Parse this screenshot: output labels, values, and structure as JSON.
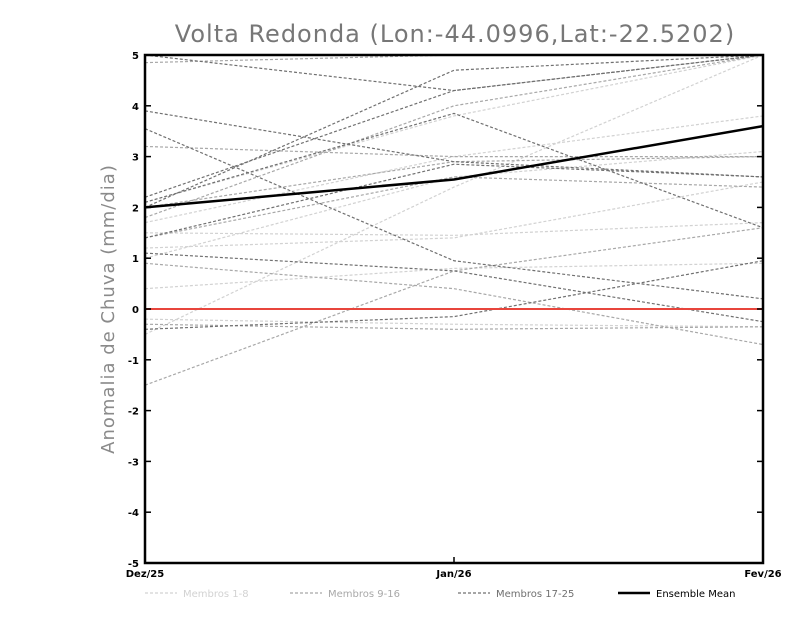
{
  "chart_data": {
    "type": "line",
    "title": "Volta Redonda (Lon:-44.0996,Lat:-22.5202)",
    "xlabel": "",
    "ylabel": "Anomalia de Chuva (mm/dia)",
    "categories": [
      "Dez/25",
      "Jan/26",
      "Fev/26"
    ],
    "ylim": [
      -5,
      5
    ],
    "yticks": [
      -5,
      -4,
      -3,
      -2,
      -1,
      0,
      1,
      2,
      3,
      4,
      5
    ],
    "reference_line": {
      "y": 0,
      "color": "#e8453c"
    },
    "legend_position": "bottom",
    "groups": [
      {
        "name": "Membros 1-8",
        "color": "#d2d2d2"
      },
      {
        "name": "Membros 9-16",
        "color": "#a8a8a8"
      },
      {
        "name": "Membros 17-25",
        "color": "#707070"
      }
    ],
    "series": [
      {
        "group": 0,
        "values": [
          1.2,
          1.4,
          2.5
        ]
      },
      {
        "group": 0,
        "values": [
          1.5,
          1.45,
          1.7
        ]
      },
      {
        "group": 0,
        "values": [
          0.4,
          0.8,
          0.9
        ]
      },
      {
        "group": 0,
        "values": [
          -0.5,
          2.4,
          5.0
        ]
      },
      {
        "group": 0,
        "values": [
          2.1,
          3.8,
          5.0
        ]
      },
      {
        "group": 0,
        "values": [
          1.0,
          2.6,
          3.1
        ]
      },
      {
        "group": 0,
        "values": [
          1.7,
          3.0,
          3.8
        ]
      },
      {
        "group": 0,
        "values": [
          -0.2,
          -0.3,
          -0.35
        ]
      },
      {
        "group": 1,
        "values": [
          4.85,
          5.0,
          5.0
        ]
      },
      {
        "group": 1,
        "values": [
          3.2,
          3.0,
          3.0
        ]
      },
      {
        "group": 1,
        "values": [
          1.4,
          2.6,
          2.4
        ]
      },
      {
        "group": 1,
        "values": [
          0.9,
          0.4,
          -0.7
        ]
      },
      {
        "group": 1,
        "values": [
          -1.5,
          0.75,
          1.6
        ]
      },
      {
        "group": 1,
        "values": [
          1.8,
          4.0,
          5.0
        ]
      },
      {
        "group": 1,
        "values": [
          2.0,
          2.9,
          3.0
        ]
      },
      {
        "group": 1,
        "values": [
          -0.3,
          -0.4,
          -0.35
        ]
      },
      {
        "group": 2,
        "values": [
          3.9,
          2.9,
          2.6
        ]
      },
      {
        "group": 2,
        "values": [
          3.55,
          0.95,
          0.2
        ]
      },
      {
        "group": 2,
        "values": [
          1.1,
          0.75,
          -0.25
        ]
      },
      {
        "group": 2,
        "values": [
          -0.4,
          -0.15,
          0.95
        ]
      },
      {
        "group": 2,
        "values": [
          2.2,
          4.3,
          5.0
        ]
      },
      {
        "group": 2,
        "values": [
          1.4,
          2.85,
          2.6
        ]
      },
      {
        "group": 2,
        "values": [
          5.0,
          4.3,
          5.0
        ]
      },
      {
        "group": 2,
        "values": [
          2.1,
          3.85,
          1.6
        ]
      },
      {
        "group": 2,
        "values": [
          2.0,
          4.7,
          5.0
        ]
      }
    ],
    "mean": {
      "name": "Ensemble Mean",
      "color": "#000000",
      "values": [
        2.0,
        2.55,
        3.6
      ]
    }
  }
}
